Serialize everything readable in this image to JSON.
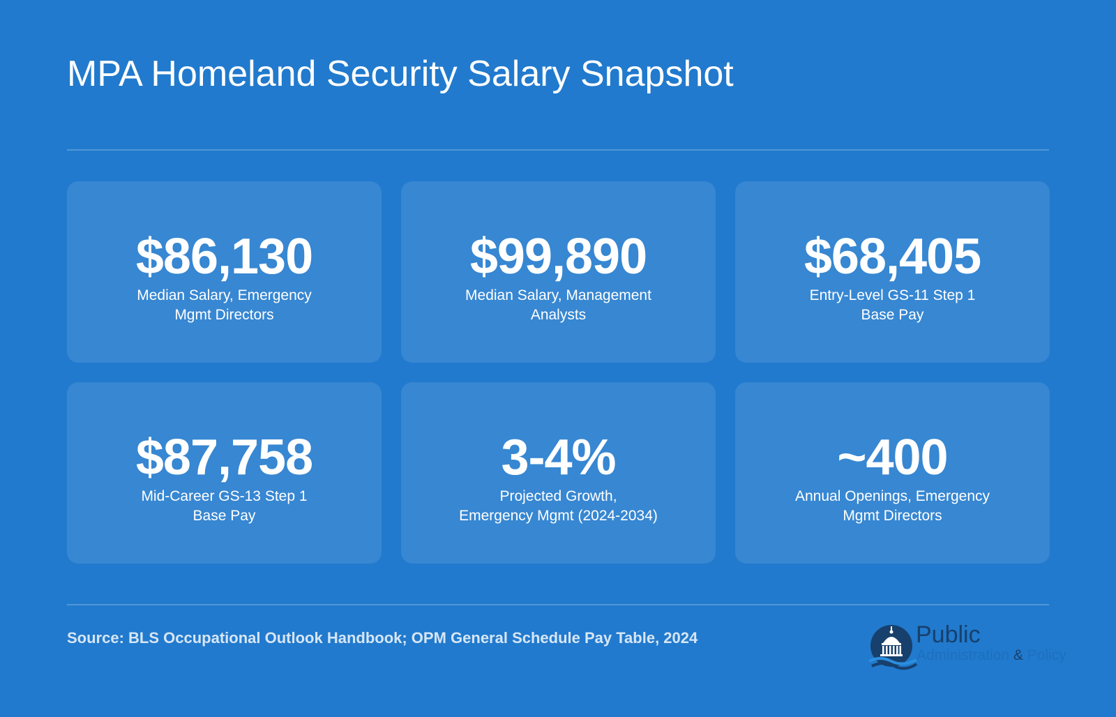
{
  "title": "MPA Homeland Security Salary Snapshot",
  "stats": [
    {
      "value": "$86,130",
      "label": "Median Salary, Emergency\nMgmt Directors"
    },
    {
      "value": "$99,890",
      "label": "Median Salary, Management\nAnalysts"
    },
    {
      "value": "$68,405",
      "label": "Entry-Level GS-11 Step 1\nBase Pay"
    },
    {
      "value": "$87,758",
      "label": "Mid-Career GS-13 Step 1\nBase Pay"
    },
    {
      "value": "3-4%",
      "label": "Projected Growth,\nEmergency Mgmt (2024-2034)"
    },
    {
      "value": "~400",
      "label": "Annual Openings, Emergency\nMgmt Directors"
    }
  ],
  "source": "Source: BLS Occupational Outlook Handbook; OPM General Schedule Pay Table, 2024",
  "logo": {
    "word": "Public",
    "tagline_left": "Administration",
    "tagline_amp": "&",
    "tagline_right": "Policy",
    "icon": "capitol-dome-icon"
  },
  "colors": {
    "background": "#217acd",
    "card": "rgba(255,255,255,0.10)",
    "logo_navy": "#17406d",
    "logo_blue": "#1e6fbf"
  }
}
